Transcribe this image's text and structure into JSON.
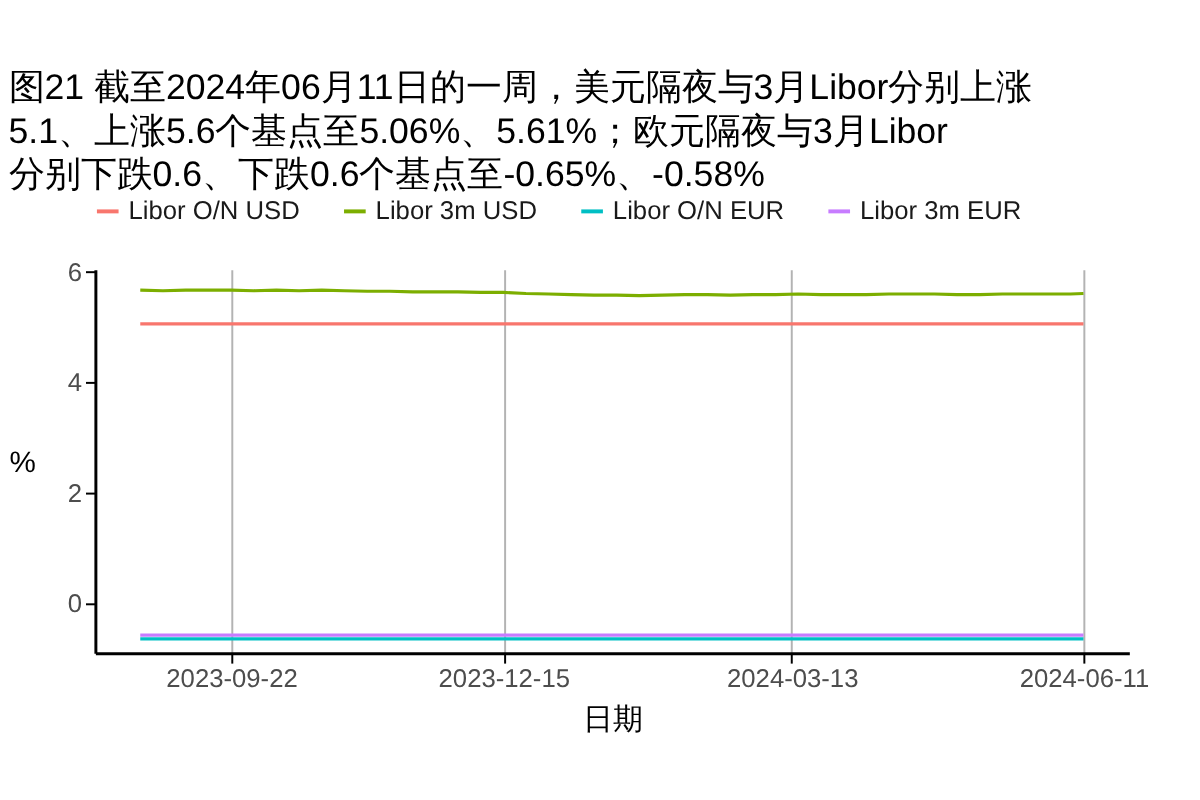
{
  "chart_data": {
    "type": "line",
    "title": "图21  截至2024年06月11日的一周，美元隔夜与3月Libor分别上涨\n5.1、上涨5.6个基点至5.06%、5.61%；欧元隔夜与3月Libor\n分别下跌0.6、下跌0.6个基点至-0.65%、-0.58%",
    "xlabel": "日期",
    "ylabel": "%",
    "xlim": [
      "2023-08-11",
      "2024-06-25"
    ],
    "xticks": [
      "2023-09-22",
      "2023-12-15",
      "2024-03-13",
      "2024-06-11"
    ],
    "ylim": [
      -0.9,
      6.05
    ],
    "yticks": [
      0,
      2,
      4,
      6
    ],
    "grid": "x",
    "legend": "top",
    "series": [
      {
        "name": "Libor O/N USD",
        "color": "#f8766d",
        "x": [
          "2023-08-25",
          "2024-06-11"
        ],
        "values": [
          5.06,
          5.06
        ]
      },
      {
        "name": "Libor 3m USD",
        "color": "#7cae00",
        "x": [
          "2023-08-25",
          "2023-09-01",
          "2023-09-08",
          "2023-09-15",
          "2023-09-22",
          "2023-09-29",
          "2023-10-06",
          "2023-10-13",
          "2023-10-20",
          "2023-10-27",
          "2023-11-03",
          "2023-11-10",
          "2023-11-17",
          "2023-11-24",
          "2023-12-01",
          "2023-12-08",
          "2023-12-15",
          "2023-12-22",
          "2023-12-29",
          "2024-01-05",
          "2024-01-12",
          "2024-01-19",
          "2024-01-26",
          "2024-02-02",
          "2024-02-09",
          "2024-02-16",
          "2024-02-23",
          "2024-03-01",
          "2024-03-08",
          "2024-03-15",
          "2024-03-22",
          "2024-03-29",
          "2024-04-05",
          "2024-04-12",
          "2024-04-19",
          "2024-04-26",
          "2024-05-03",
          "2024-05-10",
          "2024-05-17",
          "2024-05-24",
          "2024-05-31",
          "2024-06-07",
          "2024-06-11"
        ],
        "values": [
          5.67,
          5.66,
          5.67,
          5.67,
          5.67,
          5.66,
          5.67,
          5.66,
          5.67,
          5.66,
          5.65,
          5.65,
          5.64,
          5.64,
          5.64,
          5.63,
          5.63,
          5.61,
          5.6,
          5.59,
          5.58,
          5.58,
          5.57,
          5.58,
          5.59,
          5.59,
          5.58,
          5.59,
          5.59,
          5.6,
          5.59,
          5.59,
          5.59,
          5.6,
          5.6,
          5.6,
          5.59,
          5.59,
          5.6,
          5.6,
          5.6,
          5.6,
          5.61
        ]
      },
      {
        "name": "Libor O/N EUR",
        "color": "#00bfc4",
        "x": [
          "2023-08-25",
          "2024-06-11"
        ],
        "values": [
          -0.65,
          -0.65
        ]
      },
      {
        "name": "Libor 3m EUR",
        "color": "#c77cff",
        "x": [
          "2023-08-25",
          "2024-06-11"
        ],
        "values": [
          -0.58,
          -0.58
        ]
      }
    ]
  }
}
